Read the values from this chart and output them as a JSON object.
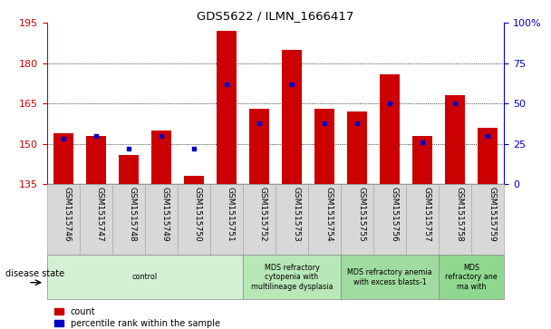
{
  "title": "GDS5622 / ILMN_1666417",
  "samples": [
    "GSM1515746",
    "GSM1515747",
    "GSM1515748",
    "GSM1515749",
    "GSM1515750",
    "GSM1515751",
    "GSM1515752",
    "GSM1515753",
    "GSM1515754",
    "GSM1515755",
    "GSM1515756",
    "GSM1515757",
    "GSM1515758",
    "GSM1515759"
  ],
  "counts": [
    154,
    153,
    146,
    155,
    138,
    192,
    163,
    185,
    163,
    162,
    176,
    153,
    168,
    156
  ],
  "percentiles": [
    28,
    30,
    22,
    30,
    22,
    62,
    38,
    62,
    38,
    38,
    50,
    26,
    50,
    30
  ],
  "ylim_left": [
    135,
    195
  ],
  "ylim_right": [
    0,
    100
  ],
  "yticks_left": [
    135,
    150,
    165,
    180,
    195
  ],
  "yticks_right": [
    0,
    25,
    50,
    75,
    100
  ],
  "bar_color": "#cc0000",
  "dot_color": "#0000cc",
  "background_color": "#ffffff",
  "bar_width": 0.6,
  "disease_groups": [
    {
      "label": "control",
      "start": 0,
      "end": 6
    },
    {
      "label": "MDS refractory\ncytopenia with\nmultilineage dysplasia",
      "start": 6,
      "end": 9
    },
    {
      "label": "MDS refractory anemia\nwith excess blasts-1",
      "start": 9,
      "end": 12
    },
    {
      "label": "MDS\nrefractory ane\nma with",
      "start": 12,
      "end": 14
    }
  ],
  "disease_group_colors": [
    "#d4f0d4",
    "#b8e8b8",
    "#a0dca0",
    "#90d890"
  ],
  "legend_labels": [
    "count",
    "percentile rank within the sample"
  ],
  "disease_state_label": "disease state",
  "grid_color": "#000000",
  "tick_label_color_left": "#cc0000",
  "tick_label_color_right": "#0000cc",
  "xlabel_bg": "#d8d8d8",
  "xlabel_border": "#aaaaaa"
}
